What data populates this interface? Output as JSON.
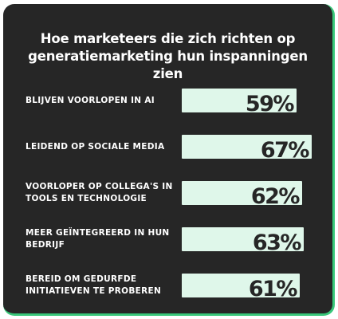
{
  "chart_data": {
    "type": "bar",
    "title": "Hoe marketeers die zich richten op generatiemarketing hun inspanningen zien",
    "categories": [
      "BLIJVEN VOORLOPEN IN AI",
      "LEIDEND OP SOCIALE MEDIA",
      "VOORLOPER OP COLLEGA'S IN TOOLS EN TECHNOLOGIE",
      "MEER GEÏNTEGREERD IN HUN BEDRIJF",
      "BEREID OM GEDURFDE INITIATIEVEN TE PROBEREN"
    ],
    "values": [
      59,
      67,
      62,
      63,
      61
    ],
    "value_labels": [
      "59%",
      "67%",
      "62%",
      "63%",
      "61%"
    ],
    "orientation": "horizontal",
    "grid": false
  },
  "colors": {
    "background": "#262626",
    "bar": "#dff7ea",
    "accent": "#39c77a",
    "text": "#ffffff"
  }
}
